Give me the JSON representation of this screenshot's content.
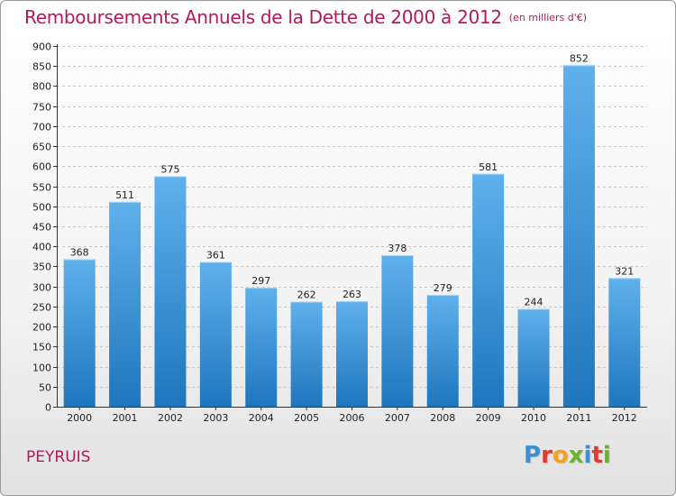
{
  "header": {
    "title": "Remboursements Annuels de la Dette de 2000 à 2012",
    "subtitle": "(en milliers d'€)"
  },
  "footer": {
    "commune": "PEYRUIS",
    "logo_text": "Proxiti",
    "logo_colors": [
      "#3a8fd4",
      "#e23b2e",
      "#f2a21b",
      "#6bb32e",
      "#3a8fd4",
      "#e23b2e",
      "#6bb32e"
    ]
  },
  "colors": {
    "title": "#b5195c",
    "bar_top": "#5fb1ec",
    "bar_bottom": "#1f76bd",
    "grid": "#c8c8c8",
    "axis": "#333333"
  },
  "chart_data": {
    "type": "bar",
    "title": "Remboursements Annuels de la Dette de 2000 à 2012",
    "xlabel": "",
    "ylabel": "en milliers d'€",
    "categories": [
      "2000",
      "2001",
      "2002",
      "2003",
      "2004",
      "2005",
      "2006",
      "2007",
      "2008",
      "2009",
      "2010",
      "2011",
      "2012"
    ],
    "values": [
      368,
      511,
      575,
      361,
      297,
      262,
      263,
      378,
      279,
      581,
      244,
      852,
      321
    ],
    "ylim": [
      0,
      900
    ],
    "yticks": [
      0,
      50,
      100,
      150,
      200,
      250,
      300,
      350,
      400,
      450,
      500,
      550,
      600,
      650,
      700,
      750,
      800,
      850,
      900
    ],
    "grid": true,
    "data_labels": true
  }
}
